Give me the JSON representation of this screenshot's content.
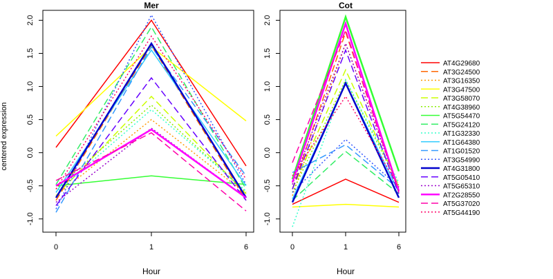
{
  "chart_data": {
    "type": "line",
    "ylabel": "centered expression",
    "x": [
      "0",
      "1",
      "6"
    ],
    "panels": [
      {
        "title": "Mer",
        "xlabel": "Hour",
        "yticks": [
          "-1.0",
          "-0.5",
          "0.0",
          "0.5",
          "1.0",
          "1.5",
          "2.0"
        ],
        "ylim": [
          -1.2,
          2.15
        ],
        "series": [
          {
            "name": "AT4G29680",
            "color": "#ff0000",
            "dash": "solid",
            "width": 1.5,
            "values": [
              0.08,
              2.0,
              -0.2
            ]
          },
          {
            "name": "AT3G24500",
            "color": "#ff6600",
            "dash": "dashed",
            "width": 1.5,
            "values": [
              -0.72,
              1.62,
              -0.72
            ]
          },
          {
            "name": "AT3G16350",
            "color": "#ff9900",
            "dash": "dotted",
            "width": 1.5,
            "values": [
              -0.65,
              0.5,
              -0.62
            ]
          },
          {
            "name": "AT3G47500",
            "color": "#ffff00",
            "dash": "solid",
            "width": 1.5,
            "values": [
              0.25,
              1.6,
              0.48
            ]
          },
          {
            "name": "AT3G58070",
            "color": "#ccff00",
            "dash": "dashed",
            "width": 1.5,
            "values": [
              -0.65,
              0.85,
              -0.62
            ]
          },
          {
            "name": "AT4G38960",
            "color": "#88ee00",
            "dash": "dotted",
            "width": 1.5,
            "values": [
              -0.55,
              0.72,
              -0.6
            ]
          },
          {
            "name": "AT5G54470",
            "color": "#33ff33",
            "dash": "solid",
            "width": 1.5,
            "values": [
              -0.5,
              -0.35,
              -0.48
            ]
          },
          {
            "name": "AT5G24120",
            "color": "#33ee66",
            "dash": "dashed",
            "width": 1.5,
            "values": [
              -0.48,
              1.9,
              -0.55
            ]
          },
          {
            "name": "AT1G32330",
            "color": "#33ffcc",
            "dash": "dotted",
            "width": 1.5,
            "values": [
              -0.6,
              0.65,
              -0.58
            ]
          },
          {
            "name": "AT1G64380",
            "color": "#33ccff",
            "dash": "solid",
            "width": 1.5,
            "values": [
              -0.6,
              1.55,
              -0.5
            ]
          },
          {
            "name": "AT1G01520",
            "color": "#3399ff",
            "dash": "dashed",
            "width": 1.5,
            "values": [
              -0.9,
              1.6,
              -0.35
            ]
          },
          {
            "name": "AT3G54990",
            "color": "#3355ff",
            "dash": "dotted",
            "width": 1.5,
            "values": [
              -0.85,
              2.08,
              -0.48
            ]
          },
          {
            "name": "AT4G31800",
            "color": "#0000cc",
            "dash": "solid",
            "width": 2.5,
            "values": [
              -0.68,
              1.65,
              -0.68
            ]
          },
          {
            "name": "AT5G05410",
            "color": "#6600ff",
            "dash": "dashed",
            "width": 1.5,
            "values": [
              -0.8,
              1.13,
              -0.72
            ]
          },
          {
            "name": "AT5G65310",
            "color": "#9900cc",
            "dash": "dotted",
            "width": 1.5,
            "values": [
              -0.75,
              0.37,
              -0.68
            ]
          },
          {
            "name": "AT2G28550",
            "color": "#ff00ff",
            "dash": "solid",
            "width": 2.5,
            "values": [
              -0.5,
              0.35,
              -0.68
            ]
          },
          {
            "name": "AT5G37020",
            "color": "#ff00aa",
            "dash": "dashed",
            "width": 1.5,
            "values": [
              -0.42,
              0.3,
              -0.88
            ]
          },
          {
            "name": "AT5G44190",
            "color": "#ff0066",
            "dash": "dotted",
            "width": 1.5,
            "values": [
              -0.55,
              1.76,
              -0.4
            ]
          }
        ]
      },
      {
        "title": "Cot",
        "xlabel": "Hour",
        "yticks": [
          "-1.0",
          "-0.5",
          "0.0",
          "0.5",
          "1.0",
          "1.5",
          "2.0"
        ],
        "ylim": [
          -1.2,
          2.15
        ],
        "series": [
          {
            "name": "AT4G29680",
            "color": "#ff0000",
            "dash": "solid",
            "width": 1.5,
            "values": [
              -0.78,
              -0.4,
              -0.75
            ]
          },
          {
            "name": "AT3G24500",
            "color": "#ff6600",
            "dash": "dashed",
            "width": 1.5,
            "values": [
              -0.55,
              1.82,
              -0.58
            ]
          },
          {
            "name": "AT3G16350",
            "color": "#ff9900",
            "dash": "dotted",
            "width": 1.5,
            "values": [
              -0.65,
              1.65,
              -0.55
            ]
          },
          {
            "name": "AT3G47500",
            "color": "#ffff00",
            "dash": "solid",
            "width": 1.5,
            "values": [
              -0.82,
              -0.78,
              -0.82
            ]
          },
          {
            "name": "AT3G58070",
            "color": "#ccff00",
            "dash": "dashed",
            "width": 1.5,
            "values": [
              -0.55,
              1.25,
              -0.5
            ]
          },
          {
            "name": "AT4G38960",
            "color": "#88ee00",
            "dash": "dotted",
            "width": 1.5,
            "values": [
              -0.6,
              1.1,
              -0.5
            ]
          },
          {
            "name": "AT5G54470",
            "color": "#33ff33",
            "dash": "solid",
            "width": 2.5,
            "values": [
              -0.4,
              2.05,
              -0.28
            ]
          },
          {
            "name": "AT5G24120",
            "color": "#33ee66",
            "dash": "dashed",
            "width": 1.5,
            "values": [
              -0.72,
              0.02,
              -0.62
            ]
          },
          {
            "name": "AT1G32330",
            "color": "#33ffcc",
            "dash": "dotted",
            "width": 1.5,
            "values": [
              -1.12,
              1.1,
              -0.45
            ]
          },
          {
            "name": "AT1G64380",
            "color": "#33ccff",
            "dash": "solid",
            "width": 1.5,
            "values": [
              -0.7,
              1.05,
              -0.6
            ]
          },
          {
            "name": "AT1G01520",
            "color": "#3399ff",
            "dash": "dashed",
            "width": 1.5,
            "values": [
              -0.3,
              0.12,
              -0.55
            ]
          },
          {
            "name": "AT3G54990",
            "color": "#3355ff",
            "dash": "dotted",
            "width": 1.5,
            "values": [
              -0.6,
              0.2,
              -0.52
            ]
          },
          {
            "name": "AT4G31800",
            "color": "#0000cc",
            "dash": "solid",
            "width": 2.5,
            "values": [
              -0.75,
              1.05,
              -0.68
            ]
          },
          {
            "name": "AT5G05410",
            "color": "#6600ff",
            "dash": "dashed",
            "width": 1.5,
            "values": [
              -0.55,
              1.55,
              -0.62
            ]
          },
          {
            "name": "AT5G65310",
            "color": "#9900cc",
            "dash": "dotted",
            "width": 1.5,
            "values": [
              -0.48,
              1.65,
              -0.55
            ]
          },
          {
            "name": "AT2G28550",
            "color": "#ff00ff",
            "dash": "solid",
            "width": 2.5,
            "values": [
              -0.45,
              1.95,
              -0.58
            ]
          },
          {
            "name": "AT5G37020",
            "color": "#ff00aa",
            "dash": "dashed",
            "width": 1.5,
            "values": [
              -0.15,
              1.85,
              -0.6
            ]
          },
          {
            "name": "AT5G44190",
            "color": "#ff0066",
            "dash": "dotted",
            "width": 1.5,
            "values": [
              -0.35,
              0.85,
              -0.52
            ]
          }
        ]
      }
    ]
  }
}
